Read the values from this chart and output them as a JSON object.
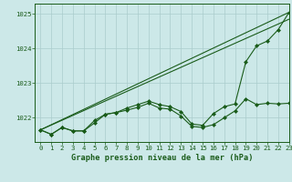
{
  "xlabel": "Graphe pression niveau de la mer (hPa)",
  "xlim": [
    -0.5,
    23
  ],
  "ylim": [
    1021.3,
    1025.3
  ],
  "yticks": [
    1022,
    1023,
    1024,
    1025
  ],
  "xticks": [
    0,
    1,
    2,
    3,
    4,
    5,
    6,
    7,
    8,
    9,
    10,
    11,
    12,
    13,
    14,
    15,
    16,
    17,
    18,
    19,
    20,
    21,
    22,
    23
  ],
  "background_color": "#cce8e8",
  "grid_color": "#aacccc",
  "line_color": "#1a5c1a",
  "line_width": 0.8,
  "marker": "D",
  "marker_size": 2.0,
  "series": [
    {
      "x": [
        0,
        23
      ],
      "y": [
        1021.65,
        1025.05
      ],
      "has_marker": false
    },
    {
      "x": [
        0,
        23
      ],
      "y": [
        1021.65,
        1024.85
      ],
      "has_marker": false
    },
    {
      "x": [
        0,
        1,
        2,
        3,
        4,
        5,
        6,
        7,
        8,
        9,
        10,
        11,
        12,
        13,
        14,
        15,
        16,
        17,
        18,
        19,
        20,
        21,
        22,
        23
      ],
      "y": [
        1021.65,
        1021.52,
        1021.72,
        1021.62,
        1021.62,
        1021.85,
        1022.1,
        1022.15,
        1022.22,
        1022.3,
        1022.42,
        1022.28,
        1022.25,
        1022.05,
        1021.75,
        1021.72,
        1021.8,
        1022.0,
        1022.2,
        1022.55,
        1022.38,
        1022.42,
        1022.4,
        1022.42
      ],
      "has_marker": true
    },
    {
      "x": [
        0,
        1,
        2,
        3,
        4,
        5,
        6,
        7,
        8,
        9,
        10,
        11,
        12,
        13,
        14,
        15,
        16,
        17,
        18,
        19,
        20,
        21,
        22,
        23
      ],
      "y": [
        1021.65,
        1021.52,
        1021.72,
        1021.62,
        1021.62,
        1021.92,
        1022.1,
        1022.15,
        1022.28,
        1022.38,
        1022.48,
        1022.38,
        1022.32,
        1022.18,
        1021.82,
        1021.78,
        1022.12,
        1022.32,
        1022.4,
        1023.62,
        1024.08,
        1024.22,
        1024.55,
        1025.05
      ],
      "has_marker": true
    }
  ],
  "font_color": "#1a5c1a",
  "tick_fontsize": 5.2,
  "label_fontsize": 6.2
}
